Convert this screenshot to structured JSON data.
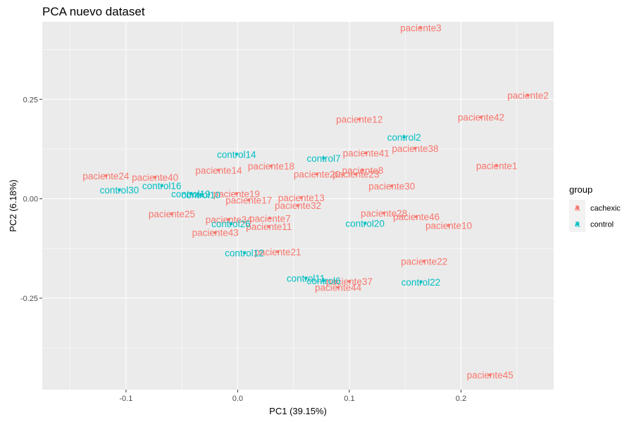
{
  "chart_data": {
    "type": "scatter",
    "title": "PCA nuevo dataset",
    "xlabel": "PC1 (39.15%)",
    "ylabel": "PC2 (6.18%)",
    "xlim": [
      -0.175,
      0.283
    ],
    "ylim": [
      -0.48,
      0.445
    ],
    "xticks": [
      {
        "value": -0.1,
        "label": "-0.1"
      },
      {
        "value": 0.0,
        "label": "0.0"
      },
      {
        "value": 0.1,
        "label": "0.1"
      },
      {
        "value": 0.2,
        "label": "0.2"
      }
    ],
    "yticks": [
      {
        "value": -0.25,
        "label": "-0.25"
      },
      {
        "value": 0.0,
        "label": "0.00"
      },
      {
        "value": 0.25,
        "label": "0.25"
      }
    ],
    "grid": true,
    "legend": {
      "title": "group",
      "position": "right",
      "entries": [
        "cachexic",
        "control"
      ]
    },
    "colors": {
      "cachexic": "#F8766D",
      "control": "#00BFC4",
      "panel": "#EBEBEB",
      "grid": "#FFFFFF"
    },
    "series": [
      {
        "name": "cachexic",
        "points": [
          {
            "label": "paciente3",
            "x": 0.164,
            "y": 0.43
          },
          {
            "label": "paciente2",
            "x": 0.26,
            "y": 0.26
          },
          {
            "label": "paciente42",
            "x": 0.218,
            "y": 0.205
          },
          {
            "label": "paciente12",
            "x": 0.109,
            "y": 0.2
          },
          {
            "label": "paciente38",
            "x": 0.159,
            "y": 0.127
          },
          {
            "label": "paciente41",
            "x": 0.115,
            "y": 0.115
          },
          {
            "label": "paciente1",
            "x": 0.232,
            "y": 0.083
          },
          {
            "label": "paciente18",
            "x": 0.03,
            "y": 0.082
          },
          {
            "label": "paciente14",
            "x": -0.017,
            "y": 0.072
          },
          {
            "label": "paciente8",
            "x": 0.112,
            "y": 0.072
          },
          {
            "label": "paciente20",
            "x": 0.071,
            "y": 0.062
          },
          {
            "label": "paciente23",
            "x": 0.106,
            "y": 0.062
          },
          {
            "label": "paciente24",
            "x": -0.118,
            "y": 0.058
          },
          {
            "label": "paciente40",
            "x": -0.074,
            "y": 0.054
          },
          {
            "label": "paciente30",
            "x": 0.138,
            "y": 0.032
          },
          {
            "label": "paciente19",
            "x": -0.001,
            "y": 0.013
          },
          {
            "label": "paciente13",
            "x": 0.057,
            "y": 0.003
          },
          {
            "label": "paciente17",
            "x": 0.01,
            "y": -0.003
          },
          {
            "label": "paciente32",
            "x": 0.054,
            "y": -0.017
          },
          {
            "label": "paciente28",
            "x": 0.131,
            "y": -0.036
          },
          {
            "label": "paciente46",
            "x": 0.16,
            "y": -0.045
          },
          {
            "label": "paciente25",
            "x": -0.059,
            "y": -0.038
          },
          {
            "label": "paciente34",
            "x": -0.008,
            "y": -0.052
          },
          {
            "label": "paciente7",
            "x": 0.029,
            "y": -0.049
          },
          {
            "label": "paciente11",
            "x": 0.028,
            "y": -0.07
          },
          {
            "label": "paciente10",
            "x": 0.189,
            "y": -0.067
          },
          {
            "label": "paciente43",
            "x": -0.02,
            "y": -0.085
          },
          {
            "label": "paciente21",
            "x": 0.036,
            "y": -0.133
          },
          {
            "label": "paciente22",
            "x": 0.167,
            "y": -0.157
          },
          {
            "label": "paciente37",
            "x": 0.1,
            "y": -0.208
          },
          {
            "label": "paciente44",
            "x": 0.09,
            "y": -0.223
          },
          {
            "label": "paciente45",
            "x": 0.226,
            "y": -0.443
          }
        ]
      },
      {
        "name": "control",
        "points": [
          {
            "label": "control2",
            "x": 0.149,
            "y": 0.155
          },
          {
            "label": "control14",
            "x": -0.001,
            "y": 0.112
          },
          {
            "label": "control7",
            "x": 0.077,
            "y": 0.102
          },
          {
            "label": "control16",
            "x": -0.068,
            "y": 0.033
          },
          {
            "label": "control19",
            "x": -0.042,
            "y": 0.013
          },
          {
            "label": "control10",
            "x": -0.033,
            "y": 0.01
          },
          {
            "label": "control30",
            "x": -0.106,
            "y": 0.022
          },
          {
            "label": "control20",
            "x": 0.114,
            "y": -0.062
          },
          {
            "label": "control26",
            "x": -0.006,
            "y": -0.063
          },
          {
            "label": "control12",
            "x": 0.006,
            "y": -0.136
          },
          {
            "label": "control11",
            "x": 0.061,
            "y": -0.2
          },
          {
            "label": "control6",
            "x": 0.077,
            "y": -0.206
          },
          {
            "label": "control22",
            "x": 0.164,
            "y": -0.209
          }
        ]
      }
    ]
  }
}
